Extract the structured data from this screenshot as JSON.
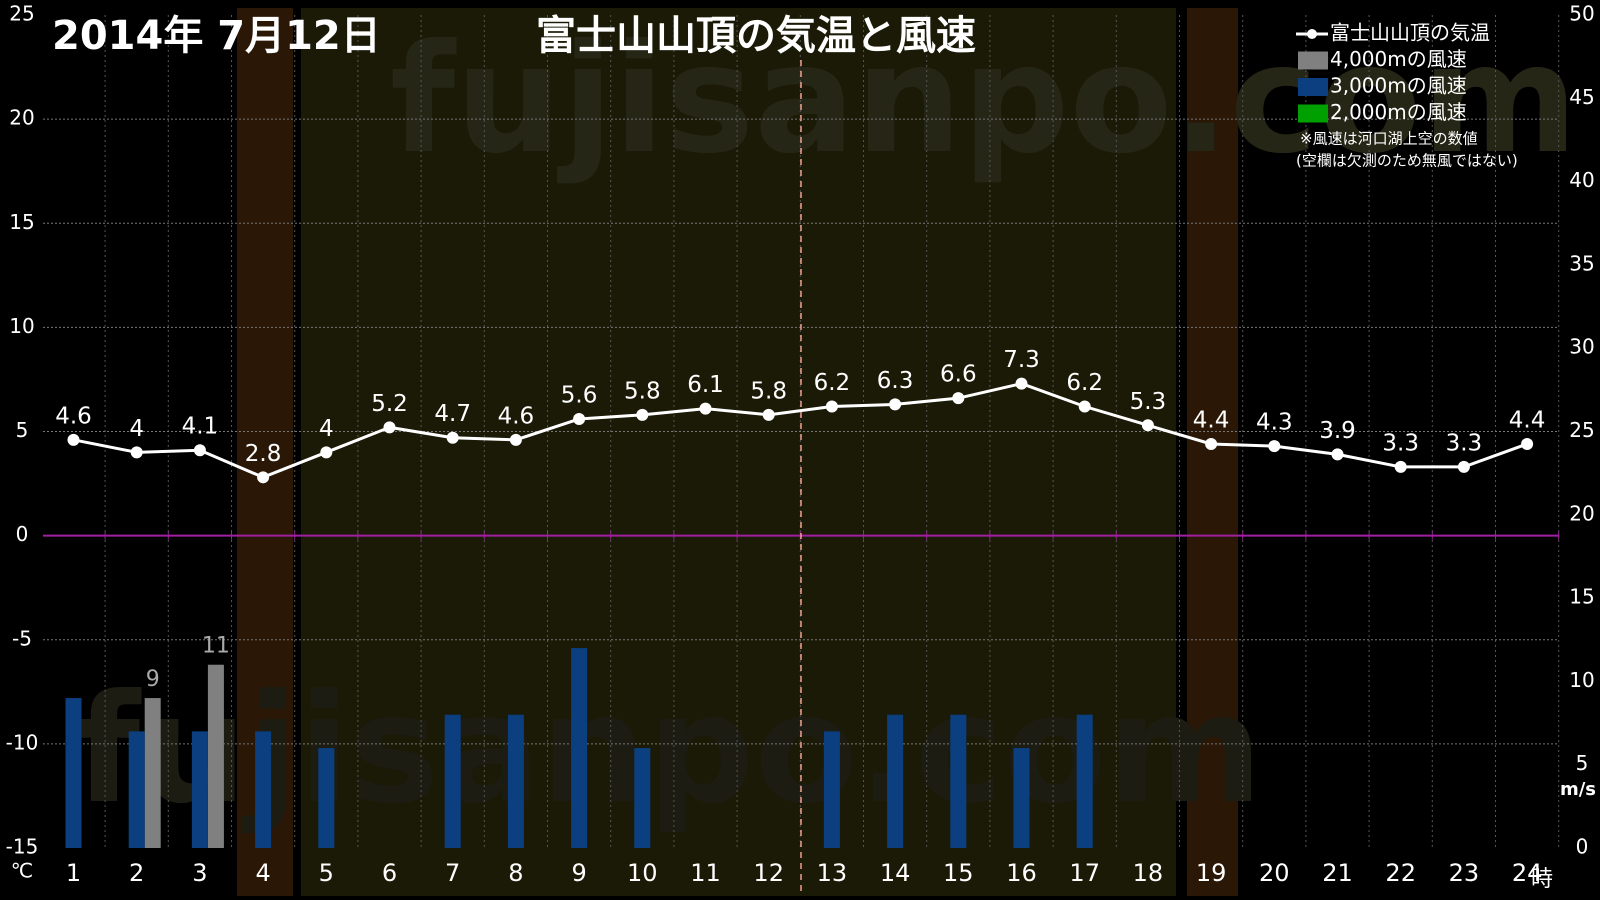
{
  "chart_data": {
    "type": "combo",
    "title": "2014年 7月12日",
    "subtitle": "富士山山頂の気温と風速",
    "watermark": "fujisanpo.com",
    "notes": [
      "※風速は河口湖上空の数値",
      "(空欄は欠測のため無風ではない)"
    ],
    "y_unit": "℃",
    "y2_unit": "m/s",
    "x_unit": "時",
    "categories": [
      "1",
      "2",
      "3",
      "4",
      "5",
      "6",
      "7",
      "8",
      "9",
      "10",
      "11",
      "12",
      "13",
      "14",
      "15",
      "16",
      "17",
      "18",
      "19",
      "20",
      "21",
      "22",
      "23",
      "24"
    ],
    "series": [
      {
        "name": "富士山山頂の気温",
        "type": "line",
        "color": "#ffffff",
        "values": [
          4.6,
          4,
          4.1,
          2.8,
          4,
          5.2,
          4.7,
          4.6,
          5.6,
          5.8,
          6.1,
          5.8,
          6.2,
          6.3,
          6.6,
          7.3,
          6.2,
          5.3,
          4.4,
          4.3,
          3.9,
          3.3,
          3.3,
          4.4
        ]
      },
      {
        "name": "4,000mの風速",
        "type": "bar",
        "axis": "y2",
        "color": "#808080",
        "data_labels": true,
        "values": [
          null,
          9,
          11,
          null,
          null,
          null,
          null,
          null,
          null,
          null,
          null,
          null,
          null,
          null,
          null,
          null,
          null,
          null,
          null,
          null,
          null,
          null,
          null,
          null
        ]
      },
      {
        "name": "3,000mの風速",
        "type": "bar",
        "axis": "y2",
        "color": "#0b3f80",
        "data_labels": false,
        "values": [
          9,
          7,
          7,
          7,
          6,
          null,
          8,
          8,
          12,
          6,
          null,
          null,
          7,
          8,
          8,
          6,
          8,
          null,
          null,
          null,
          null,
          null,
          null,
          null
        ]
      },
      {
        "name": "2,000mの風速",
        "type": "bar",
        "axis": "y2",
        "color": "#00a000",
        "data_labels": false,
        "values": [
          null,
          null,
          null,
          null,
          null,
          null,
          null,
          null,
          null,
          null,
          null,
          null,
          null,
          null,
          null,
          null,
          null,
          null,
          null,
          null,
          null,
          null,
          null,
          null
        ]
      }
    ],
    "ylim": [
      -15,
      25
    ],
    "yticks": [
      -15,
      -10,
      -5,
      0,
      5,
      10,
      15,
      20,
      25
    ],
    "y2lim": [
      0,
      50
    ],
    "y2ticks": [
      0,
      5,
      10,
      15,
      20,
      25,
      30,
      35,
      40,
      45,
      50
    ],
    "grid": true
  }
}
